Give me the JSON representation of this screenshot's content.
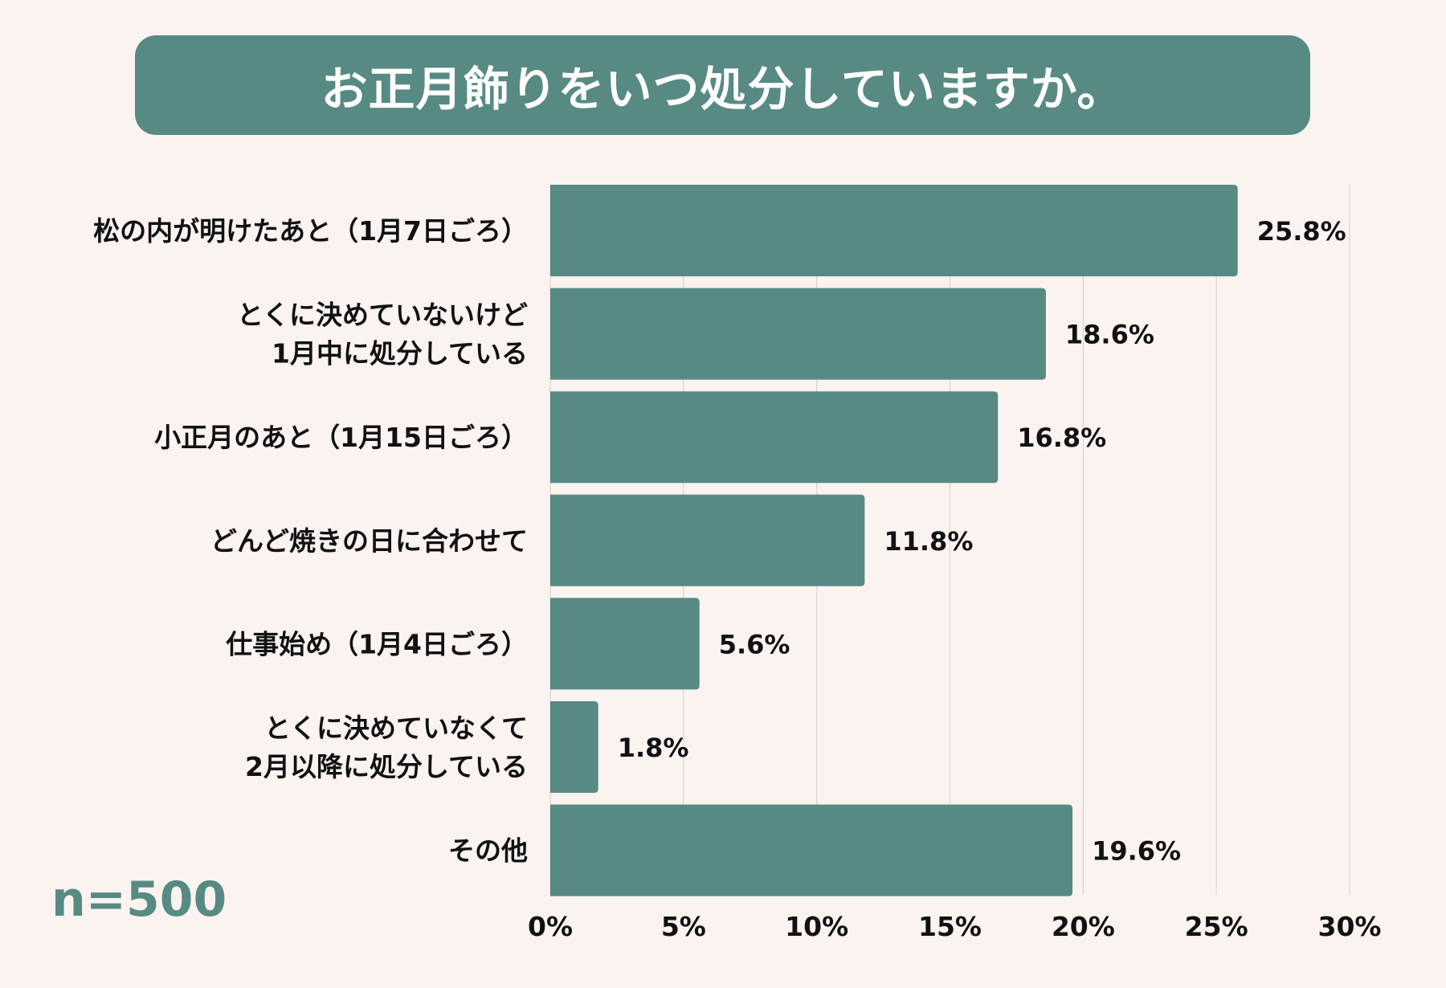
{
  "chart_data": {
    "type": "bar",
    "orientation": "horizontal",
    "title": "お正月飾りをいつ処分していますか。",
    "categories": [
      [
        "松の内が明けたあと（1月7日ごろ）"
      ],
      [
        "とくに決めていないけど",
        "1月中に処分している"
      ],
      [
        "小正月のあと（1月15日ごろ）"
      ],
      [
        "どんど焼きの日に合わせて"
      ],
      [
        "仕事始め（1月4日ごろ）"
      ],
      [
        "とくに決めていなくて",
        "2月以降に処分している"
      ],
      [
        "その他"
      ]
    ],
    "values": [
      25.8,
      18.6,
      16.8,
      11.8,
      5.6,
      1.8,
      19.6
    ],
    "value_labels": [
      "25.8%",
      "18.6%",
      "16.8%",
      "11.8%",
      "5.6%",
      "1.8%",
      "19.6%"
    ],
    "xlim": [
      0,
      30
    ],
    "xticks": [
      0,
      5,
      10,
      15,
      20,
      25,
      30
    ],
    "xtick_labels": [
      "0%",
      "5%",
      "10%",
      "15%",
      "20%",
      "25%",
      "30%"
    ],
    "grid": "vertical",
    "bar_color": "#578a83",
    "note": "n=500"
  },
  "colors": {
    "background": "#fbf3f0",
    "accent": "#578a83",
    "grid": "#d8d4d2"
  }
}
